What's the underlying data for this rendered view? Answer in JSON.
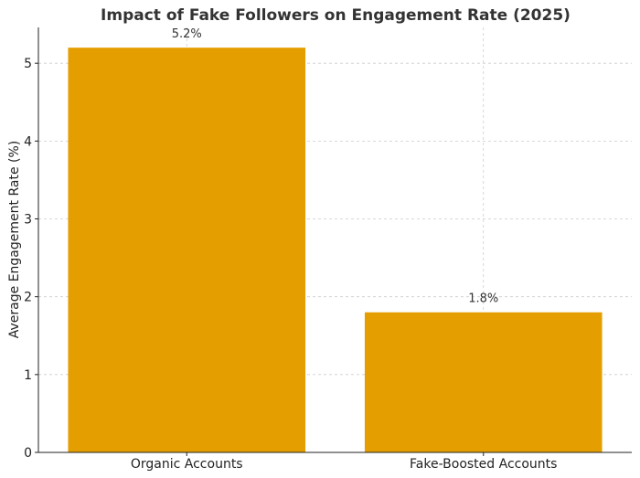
{
  "chart_data": {
    "type": "bar",
    "title": "Impact of Fake Followers on Engagement Rate (2025)",
    "xlabel": "",
    "ylabel": "Average Engagement Rate (%)",
    "categories": [
      "Organic Accounts",
      "Fake-Boosted Accounts"
    ],
    "values": [
      5.2,
      1.8
    ],
    "data_labels": [
      "5.2%",
      "1.8%"
    ],
    "ylim": [
      0,
      5.46
    ],
    "yticks": [
      0,
      1,
      2,
      3,
      4,
      5
    ],
    "ytick_labels": [
      "0",
      "1",
      "2",
      "3",
      "4",
      "5"
    ],
    "bar_color": "#E49E00",
    "grid": true
  }
}
